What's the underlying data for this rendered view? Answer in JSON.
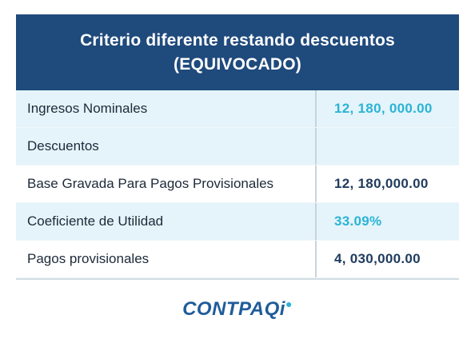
{
  "header": {
    "line1": "Criterio diferente restando descuentos",
    "line2": "(EQUIVOCADO)"
  },
  "rows": [
    {
      "label": "Ingresos Nominales",
      "value": "12, 180, 000.00",
      "value_color": "cyan"
    },
    {
      "label": "Descuentos",
      "value": "",
      "value_color": "dark"
    },
    {
      "label": "Base Gravada Para Pagos Provisionales",
      "value": "12, 180,000.00",
      "value_color": "dark"
    },
    {
      "label": "Coeficiente de Utilidad",
      "value": "33.09%",
      "value_color": "cyan"
    },
    {
      "label": "Pagos provisionales",
      "value": "4, 030,000.00",
      "value_color": "dark"
    }
  ],
  "logo": {
    "text_main": "CONTPAQ",
    "text_i": "i"
  },
  "colors": {
    "header_bg": "#1f4a7c",
    "row_shaded": "#e4f4fa",
    "value_cyan": "#2bb3d6",
    "value_dark": "#1f3b5e",
    "logo_blue": "#1f5c9a"
  }
}
